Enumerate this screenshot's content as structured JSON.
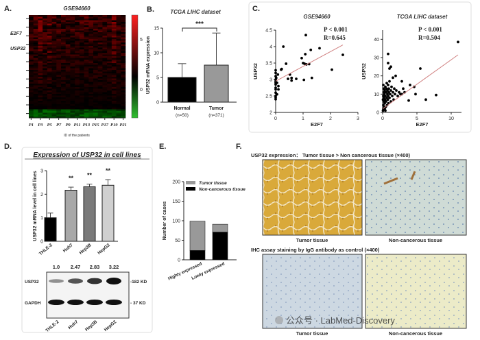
{
  "panels": {
    "A": {
      "label": "A.",
      "title": "GSE94660",
      "gene_labels": [
        "E2F7",
        "USP32"
      ],
      "xlabel": "ID of the patients",
      "xticks": [
        "P1",
        "P3",
        "P5",
        "P7",
        "P9",
        "P11",
        "P13",
        "P15",
        "P17",
        "P19",
        "P21"
      ],
      "colorbar_ticks": [
        "5",
        "0"
      ]
    },
    "B": {
      "label": "B.",
      "title": "TCGA LIHC dataset",
      "significance": "***"
    },
    "C": {
      "label": "C."
    },
    "D": {
      "label": "D.",
      "title": "Expression of USP32 in cell lines",
      "blot": {
        "quant": [
          "1.0",
          "2.47",
          "2.83",
          "3.22"
        ],
        "rows": [
          "USP32",
          "GAPDH"
        ],
        "sizes": [
          "-182 KD",
          "- 37  KD"
        ],
        "lanes": [
          "THLE-2",
          "Huh7",
          "Hep3B",
          "HepG2"
        ]
      }
    },
    "E": {
      "label": "E."
    },
    "F": {
      "label": "F.",
      "top_title": "USP32 expression：  Tumor tissue  >  Non cancerous tissue  (×400)",
      "bottom_title": "IHC assay staining by IgG antibody as control   (×400)",
      "captions": [
        "Tumor tissue",
        "Non-cancerous tissue",
        "Tumor tissue",
        "Non-cancerous tissue"
      ],
      "watermark": "公众号 · LabMed-Discovery"
    }
  },
  "colors": {
    "heat_high": "#ff2020",
    "heat_mid": "#000000",
    "heat_low": "#30c030",
    "regression": "#d08080",
    "tumor_gray": "#999999",
    "ihc_brown": "#d9a93a",
    "ihc_blue": "#c9d6dc"
  },
  "chart_data": [
    {
      "id": "A",
      "type": "heatmap",
      "title": "GSE94660",
      "xlabel": "ID of the patients",
      "x": [
        "P1",
        "P3",
        "P5",
        "P7",
        "P9",
        "P11",
        "P13",
        "P15",
        "P17",
        "P19",
        "P21"
      ],
      "row_labels": [
        "E2F7",
        "USP32"
      ],
      "colorbar_ticks": [
        5,
        0
      ],
      "color_range": [
        -3,
        7
      ]
    },
    {
      "id": "B",
      "type": "bar",
      "title": "TCGA LIHC dataset",
      "ylabel": "USP32 mRNA expression",
      "categories": [
        "Normal",
        "Tumor"
      ],
      "category_sub": [
        "(n=50)",
        "(n=371)"
      ],
      "values": [
        5.0,
        7.5
      ],
      "error_upper": [
        7.8,
        14.0
      ],
      "colors": [
        "#000000",
        "#999999"
      ],
      "ylim": [
        0,
        15
      ],
      "yticks": [
        0,
        5,
        10,
        15
      ],
      "annotation": "***"
    },
    {
      "id": "C1",
      "type": "scatter",
      "title": "GSE94660",
      "xlabel": "E2F7",
      "ylabel": "USP32",
      "annotations": [
        "P < 0.001",
        "R=0.645"
      ],
      "xlim": [
        0,
        3
      ],
      "ylim": [
        2.0,
        4.5
      ],
      "xticks": [
        0,
        1,
        2,
        3
      ],
      "yticks": [
        2.0,
        2.5,
        3.0,
        3.5,
        4.0,
        4.5
      ],
      "fit_line": [
        [
          0,
          2.95
        ],
        [
          2.45,
          4.05
        ]
      ],
      "points": [
        [
          0,
          3.28
        ],
        [
          0,
          3.2
        ],
        [
          0,
          3.1
        ],
        [
          0,
          3.0
        ],
        [
          0,
          2.95
        ],
        [
          0,
          2.9
        ],
        [
          0,
          2.85
        ],
        [
          0,
          2.75
        ],
        [
          0,
          2.7
        ],
        [
          0,
          2.6
        ],
        [
          0,
          2.5
        ],
        [
          0,
          2.45
        ],
        [
          0,
          2.4
        ],
        [
          0.02,
          3.05
        ],
        [
          0.05,
          2.9
        ],
        [
          0.05,
          2.55
        ],
        [
          0.08,
          3.15
        ],
        [
          0.1,
          2.8
        ],
        [
          0.1,
          2.7
        ],
        [
          0.2,
          3.3
        ],
        [
          0.22,
          3.32
        ],
        [
          0.28,
          4.0
        ],
        [
          0.38,
          3.48
        ],
        [
          0.45,
          3.02
        ],
        [
          0.52,
          3.15
        ],
        [
          0.58,
          3.05
        ],
        [
          0.58,
          2.97
        ],
        [
          0.75,
          3.02
        ],
        [
          0.95,
          3.65
        ],
        [
          1.0,
          3.5
        ],
        [
          1.03,
          2.99
        ],
        [
          1.05,
          3.48
        ],
        [
          1.08,
          3.77
        ],
        [
          1.1,
          4.35
        ],
        [
          1.12,
          3.46
        ],
        [
          1.22,
          3.47
        ],
        [
          1.28,
          3.9
        ],
        [
          1.32,
          3.05
        ],
        [
          1.6,
          3.95
        ],
        [
          2.05,
          3.3
        ],
        [
          2.45,
          3.75
        ]
      ]
    },
    {
      "id": "C2",
      "type": "scatter",
      "title": "TCGA LIHC dataset",
      "xlabel": "E2F7",
      "ylabel": "USP32",
      "annotations": [
        "P < 0.001",
        "R=0.504"
      ],
      "xlim": [
        0,
        11.5
      ],
      "ylim": [
        0,
        45
      ],
      "xticks": [
        0,
        5,
        10
      ],
      "yticks": [
        0,
        10,
        20,
        30,
        40
      ],
      "fit_line": [
        [
          0,
          2.0
        ],
        [
          11,
          31.5
        ]
      ],
      "points": [
        [
          0.05,
          1
        ],
        [
          0.1,
          2
        ],
        [
          0.1,
          4
        ],
        [
          0.15,
          6
        ],
        [
          0.2,
          3
        ],
        [
          0.2,
          8
        ],
        [
          0.25,
          10
        ],
        [
          0.3,
          5
        ],
        [
          0.3,
          12
        ],
        [
          0.35,
          7
        ],
        [
          0.4,
          9
        ],
        [
          0.4,
          14
        ],
        [
          0.45,
          3
        ],
        [
          0.5,
          11
        ],
        [
          0.5,
          6
        ],
        [
          0.55,
          13
        ],
        [
          0.6,
          8
        ],
        [
          0.6,
          16
        ],
        [
          0.65,
          4
        ],
        [
          0.7,
          10
        ],
        [
          0.7,
          12
        ],
        [
          0.75,
          7
        ],
        [
          0.8,
          15
        ],
        [
          0.8,
          9
        ],
        [
          0.85,
          5
        ],
        [
          0.9,
          11
        ],
        [
          0.9,
          13
        ],
        [
          1.0,
          8
        ],
        [
          1.0,
          17
        ],
        [
          1.1,
          10
        ],
        [
          1.2,
          12
        ],
        [
          1.2,
          6
        ],
        [
          1.3,
          14
        ],
        [
          1.4,
          9
        ],
        [
          1.5,
          11
        ],
        [
          1.6,
          7
        ],
        [
          1.7,
          13
        ],
        [
          1.8,
          10
        ],
        [
          1.9,
          20
        ],
        [
          2.0,
          12
        ],
        [
          2.2,
          9
        ],
        [
          2.4,
          11
        ],
        [
          2.6,
          10
        ],
        [
          2.8,
          17
        ],
        [
          2.8,
          10
        ],
        [
          3.0,
          13
        ],
        [
          3.2,
          11
        ],
        [
          0.1,
          9
        ],
        [
          0.2,
          11
        ],
        [
          0.3,
          2
        ],
        [
          0.15,
          13
        ],
        [
          0.4,
          1
        ],
        [
          0.05,
          7
        ],
        [
          0.1,
          15
        ],
        [
          0.8,
          32
        ],
        [
          0.8,
          27
        ],
        [
          1.0,
          24
        ],
        [
          1.2,
          25
        ],
        [
          1.5,
          19
        ],
        [
          3.8,
          6.5
        ],
        [
          4.0,
          15
        ],
        [
          4.6,
          14
        ],
        [
          4.8,
          10
        ],
        [
          5.5,
          24
        ],
        [
          6.3,
          7
        ],
        [
          7.8,
          9.5
        ],
        [
          11.0,
          38.5
        ]
      ]
    },
    {
      "id": "D",
      "type": "bar",
      "ylabel": "USP32 mRNA level in cell lines",
      "categories": [
        "THLE-2",
        "Huh7",
        "Hep3B",
        "HepG2"
      ],
      "values": [
        1.0,
        2.17,
        2.32,
        2.38
      ],
      "error_upper": [
        1.2,
        2.3,
        2.43,
        2.62
      ],
      "significance": [
        "",
        "**",
        "**",
        "**"
      ],
      "colors": [
        "#000000",
        "#a8a8a8",
        "#7a7a7a",
        "#d0d0d0"
      ],
      "ylim": [
        0,
        3
      ],
      "yticks": [
        0,
        1,
        2,
        3
      ]
    },
    {
      "id": "E",
      "type": "bar",
      "stacked": true,
      "ylabel": "Number of cases",
      "categories": [
        "Highly expressed",
        "Lowly expressed"
      ],
      "series": [
        {
          "name": "Non-cancerous tissue",
          "values": [
            24,
            71
          ],
          "color": "#000000"
        },
        {
          "name": "Tumor tissue",
          "values": [
            75,
            20
          ],
          "color": "#999999"
        }
      ],
      "legend": [
        "Tumor tissue",
        "Non-cancerous tissue"
      ],
      "legend_position": "top",
      "ylim": [
        0,
        200
      ],
      "yticks": [
        0,
        50,
        100,
        150,
        200
      ]
    }
  ]
}
